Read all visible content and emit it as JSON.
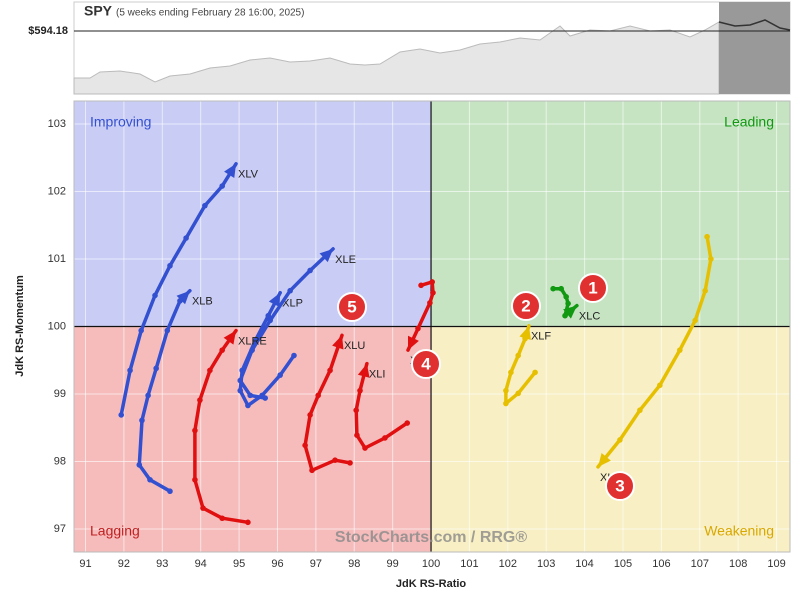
{
  "header": {
    "symbol": "SPY",
    "period": "(5 weeks ending February 28 16:00, 2025)",
    "last_price": "$594.18"
  },
  "chart_data": {
    "type": "rrg",
    "x_label": "JdK RS-Ratio",
    "y_label": "JdK RS-Momentum",
    "quadrants": [
      "Improving",
      "Leading",
      "Lagging",
      "Weakening"
    ],
    "watermark": "StockCharts.com / RRG®",
    "annotations": [
      "1",
      "2",
      "3",
      "4",
      "5"
    ],
    "xlim": [
      90.7,
      109.35
    ],
    "ylim": [
      96.66,
      103.34
    ],
    "xticks": [
      91,
      92,
      93,
      94,
      95,
      96,
      97,
      98,
      99,
      100,
      101,
      102,
      103,
      104,
      105,
      106,
      107,
      108,
      109
    ],
    "yticks": [
      97,
      98,
      99,
      100,
      101,
      102,
      103
    ],
    "center": [
      100,
      100
    ],
    "grid": true,
    "series": [
      {
        "name": "XLV",
        "color": "#3350d0",
        "x": [
          91.93,
          92.16,
          92.45,
          92.81,
          93.2,
          93.62,
          94.11,
          94.56,
          94.92
        ],
        "y": [
          98.69,
          99.35,
          99.94,
          100.46,
          100.9,
          101.31,
          101.79,
          102.08,
          102.41
        ]
      },
      {
        "name": "XLB",
        "color": "#3350d0",
        "x": [
          93.2,
          92.68,
          92.4,
          92.47,
          92.63,
          92.84,
          93.13,
          93.46,
          93.72
        ],
        "y": [
          97.56,
          97.73,
          97.95,
          98.61,
          98.98,
          99.38,
          99.94,
          100.38,
          100.53
        ]
      },
      {
        "name": "XLP",
        "color": "#3350d0",
        "x": [
          96.43,
          96.07,
          95.6,
          95.23,
          95.03,
          95.08,
          95.42,
          95.76,
          96.07
        ],
        "y": [
          99.57,
          99.28,
          98.98,
          98.83,
          99.05,
          99.35,
          99.79,
          100.16,
          100.5
        ]
      },
      {
        "name": "XLE",
        "color": "#3350d0",
        "x": [
          95.68,
          95.29,
          95.03,
          95.34,
          95.81,
          96.33,
          96.85,
          97.45
        ],
        "y": [
          98.94,
          98.98,
          99.2,
          99.65,
          100.09,
          100.53,
          100.83,
          101.15
        ]
      },
      {
        "name": "XLRE",
        "color": "#e01010",
        "x": [
          95.23,
          94.56,
          94.06,
          93.85,
          93.85,
          93.98,
          94.24,
          94.56,
          94.92
        ],
        "y": [
          97.1,
          97.16,
          97.31,
          97.73,
          98.46,
          98.91,
          99.35,
          99.65,
          99.94
        ]
      },
      {
        "name": "XLU",
        "color": "#e01010",
        "x": [
          97.89,
          97.5,
          96.9,
          96.72,
          96.85,
          97.06,
          97.37,
          97.68
        ],
        "y": [
          97.98,
          98.02,
          97.87,
          98.24,
          98.69,
          98.98,
          99.35,
          99.87
        ]
      },
      {
        "name": "XLI",
        "color": "#e01010",
        "x": [
          99.38,
          98.8,
          98.28,
          98.07,
          98.05,
          98.15,
          98.33
        ],
        "y": [
          98.57,
          98.35,
          98.2,
          98.39,
          98.76,
          99.05,
          99.45
        ]
      },
      {
        "name": "XLK",
        "color": "#e01010",
        "x": [
          99.74,
          100.03,
          100.05,
          99.97,
          99.66,
          99.4
        ],
        "y": [
          100.61,
          100.66,
          100.5,
          100.35,
          99.97,
          99.65
        ]
      },
      {
        "name": "XLF",
        "color": "#e6c000",
        "x": [
          102.71,
          102.27,
          101.95,
          101.95,
          102.08,
          102.27,
          102.45,
          102.55
        ],
        "y": [
          99.32,
          99.01,
          98.86,
          99.05,
          99.32,
          99.57,
          99.82,
          100.01
        ]
      },
      {
        "name": "XLY",
        "color": "#e6c000",
        "x": [
          107.19,
          107.29,
          107.14,
          106.88,
          106.48,
          105.96,
          105.44,
          104.92,
          104.35
        ],
        "y": [
          101.33,
          101.0,
          100.53,
          100.09,
          99.65,
          99.13,
          98.76,
          98.32,
          97.92
        ]
      },
      {
        "name": "XLC",
        "color": "#119911",
        "x": [
          103.18,
          103.39,
          103.52,
          103.57,
          103.49,
          103.8
        ],
        "y": [
          100.56,
          100.56,
          100.44,
          100.34,
          100.16,
          100.31
        ]
      }
    ]
  }
}
